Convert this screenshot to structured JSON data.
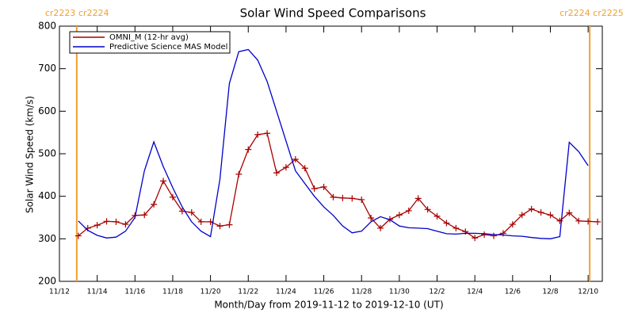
{
  "chart_data": {
    "type": "line",
    "title": "Solar Wind Speed Comparisons",
    "xlabel": "Month/Day from 2019-11-12 to 2019-12-10 (UT)",
    "ylabel": "Solar Wind Speed (km/s)",
    "x": [
      "2019-11-13T00:00",
      "2019-11-13T12:00",
      "2019-11-14T00:00",
      "2019-11-14T12:00",
      "2019-11-15T00:00",
      "2019-11-15T12:00",
      "2019-11-16T00:00",
      "2019-11-16T12:00",
      "2019-11-17T00:00",
      "2019-11-17T12:00",
      "2019-11-18T00:00",
      "2019-11-18T12:00",
      "2019-11-19T00:00",
      "2019-11-19T12:00",
      "2019-11-20T00:00",
      "2019-11-20T12:00",
      "2019-11-21T00:00",
      "2019-11-21T12:00",
      "2019-11-22T00:00",
      "2019-11-22T12:00",
      "2019-11-23T00:00",
      "2019-11-23T12:00",
      "2019-11-24T00:00",
      "2019-11-24T12:00",
      "2019-11-25T00:00",
      "2019-11-25T12:00",
      "2019-11-26T00:00",
      "2019-11-26T12:00",
      "2019-11-27T00:00",
      "2019-11-27T12:00",
      "2019-11-28T00:00",
      "2019-11-28T12:00",
      "2019-11-29T00:00",
      "2019-11-29T12:00",
      "2019-11-30T00:00",
      "2019-11-30T12:00",
      "2019-12-01T00:00",
      "2019-12-01T12:00",
      "2019-12-02T00:00",
      "2019-12-02T12:00",
      "2019-12-03T00:00",
      "2019-12-03T12:00",
      "2019-12-04T00:00",
      "2019-12-04T12:00",
      "2019-12-05T00:00",
      "2019-12-05T12:00",
      "2019-12-06T00:00",
      "2019-12-06T12:00",
      "2019-12-07T00:00",
      "2019-12-07T12:00",
      "2019-12-08T00:00",
      "2019-12-08T12:00",
      "2019-12-09T00:00",
      "2019-12-09T12:00",
      "2019-12-10T00:00",
      "2019-12-10T12:00"
    ],
    "series": [
      {
        "name": "OMNI_M (12-hr avg)",
        "color": "#aa0000",
        "marker": "plus",
        "values": [
          307,
          325,
          332,
          341,
          340,
          334,
          355,
          356,
          381,
          436,
          398,
          365,
          362,
          340,
          340,
          330,
          333,
          452,
          510,
          545,
          548,
          455,
          468,
          487,
          466,
          418,
          422,
          398,
          396,
          395,
          392,
          349,
          325,
          346,
          356,
          366,
          395,
          369,
          353,
          337,
          325,
          317,
          302,
          310,
          307,
          313,
          334,
          356,
          370,
          362,
          356,
          342,
          361,
          342,
          341,
          340
        ]
      },
      {
        "name": "Predictive Science MAS Model",
        "color": "#0000cc",
        "values": [
          342,
          320,
          308,
          302,
          304,
          318,
          350,
          460,
          528,
          470,
          420,
          375,
          340,
          318,
          305,
          440,
          665,
          740,
          745,
          720,
          670,
          600,
          530,
          460,
          430,
          400,
          375,
          355,
          330,
          314,
          318,
          340,
          352,
          345,
          330,
          326,
          325,
          324,
          318,
          312,
          311,
          313,
          313,
          312,
          310,
          309,
          307,
          306,
          303,
          301,
          300,
          305,
          527,
          505,
          472,
          null
        ]
      }
    ],
    "xlim": [
      "2019-11-12T00:00",
      "2019-12-10T18:00"
    ],
    "xticks": [
      {
        "value": "2019-11-12T00:00",
        "label": "11/12"
      },
      {
        "value": "2019-11-14T00:00",
        "label": "11/14"
      },
      {
        "value": "2019-11-16T00:00",
        "label": "11/16"
      },
      {
        "value": "2019-11-18T00:00",
        "label": "11/18"
      },
      {
        "value": "2019-11-20T00:00",
        "label": "11/20"
      },
      {
        "value": "2019-11-22T00:00",
        "label": "11/22"
      },
      {
        "value": "2019-11-24T00:00",
        "label": "11/24"
      },
      {
        "value": "2019-11-26T00:00",
        "label": "11/26"
      },
      {
        "value": "2019-11-28T00:00",
        "label": "11/28"
      },
      {
        "value": "2019-11-30T00:00",
        "label": "11/30"
      },
      {
        "value": "2019-12-02T00:00",
        "label": "12/2"
      },
      {
        "value": "2019-12-04T00:00",
        "label": "12/4"
      },
      {
        "value": "2019-12-06T00:00",
        "label": "12/6"
      },
      {
        "value": "2019-12-08T00:00",
        "label": "12/8"
      },
      {
        "value": "2019-12-10T00:00",
        "label": "12/10"
      }
    ],
    "ylim": [
      200,
      800
    ],
    "yticks": [
      200,
      300,
      400,
      500,
      600,
      700,
      800
    ],
    "annotations": [
      {
        "x": "2019-11-12T22:00",
        "label": "cr2223 cr2224",
        "color": "#f0a030"
      },
      {
        "x": "2019-12-10T02:00",
        "label": "cr2224 cr2225",
        "color": "#f0a030"
      }
    ],
    "legend": "upper left"
  }
}
